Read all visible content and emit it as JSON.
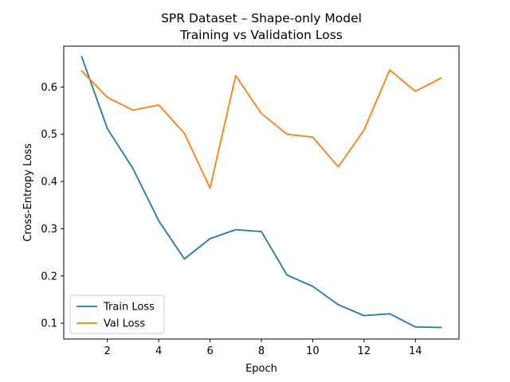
{
  "chart_data": {
    "type": "line",
    "title": "SPR Dataset – Shape-only Model",
    "subtitle": "Training vs Validation Loss",
    "xlabel": "Epoch",
    "ylabel": "Cross-Entropy Loss",
    "xlim": [
      0.3,
      15.7
    ],
    "ylim": [
      0.0665,
      0.6865
    ],
    "xticks": [
      2,
      4,
      6,
      8,
      10,
      12,
      14
    ],
    "yticks": [
      0.1,
      0.2,
      0.3,
      0.4,
      0.5,
      0.6
    ],
    "x": [
      1,
      2,
      3,
      4,
      5,
      6,
      7,
      8,
      9,
      10,
      11,
      12,
      13,
      14,
      15
    ],
    "series": [
      {
        "name": "Train Loss",
        "color": "#1f77b4",
        "values": [
          0.664,
          0.512,
          0.427,
          0.317,
          0.236,
          0.279,
          0.298,
          0.294,
          0.202,
          0.178,
          0.139,
          0.116,
          0.12,
          0.092,
          0.091
        ]
      },
      {
        "name": "Val Loss",
        "color": "#ff7f0e",
        "values": [
          0.634,
          0.578,
          0.551,
          0.562,
          0.502,
          0.386,
          0.624,
          0.544,
          0.5,
          0.494,
          0.431,
          0.509,
          0.636,
          0.591,
          0.619
        ]
      }
    ],
    "grid": false,
    "legend_position": "lower-left"
  }
}
